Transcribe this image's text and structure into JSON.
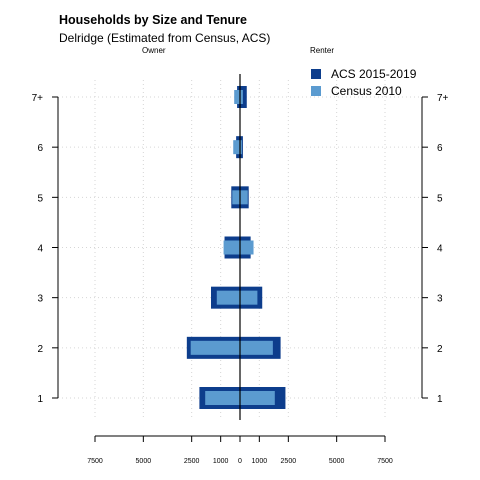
{
  "chart_data": {
    "type": "bar",
    "orientation": "horizontal-population-pyramid",
    "title": "Households by Size and Tenure",
    "subtitle": "Delridge (Estimated from Census, ACS)",
    "left_side_label": "Owner",
    "right_side_label": "Renter",
    "categories": [
      "1",
      "2",
      "3",
      "4",
      "5",
      "6",
      "7+"
    ],
    "x_tick_labels": [
      "7500",
      "5000",
      "2500",
      "1000",
      "0",
      "1000",
      "2500",
      "5000",
      "7500"
    ],
    "x_tick_values": [
      -7500,
      -5000,
      -2500,
      -1000,
      0,
      1000,
      2500,
      5000,
      7500
    ],
    "xlim": [
      -7500,
      7500
    ],
    "grid": true,
    "legend_position": "top-right",
    "series": [
      {
        "name": "ACS 2015-2019",
        "color": "#0d3d8c",
        "owner": [
          2100,
          2750,
          1500,
          800,
          450,
          200,
          150
        ],
        "renter": [
          2350,
          2100,
          1150,
          550,
          450,
          150,
          350
        ]
      },
      {
        "name": "Census 2010",
        "color": "#5b9bd0",
        "owner": [
          1800,
          2550,
          1200,
          850,
          400,
          350,
          300
        ],
        "renter": [
          1800,
          1700,
          900,
          700,
          400,
          100,
          150
        ]
      }
    ]
  }
}
